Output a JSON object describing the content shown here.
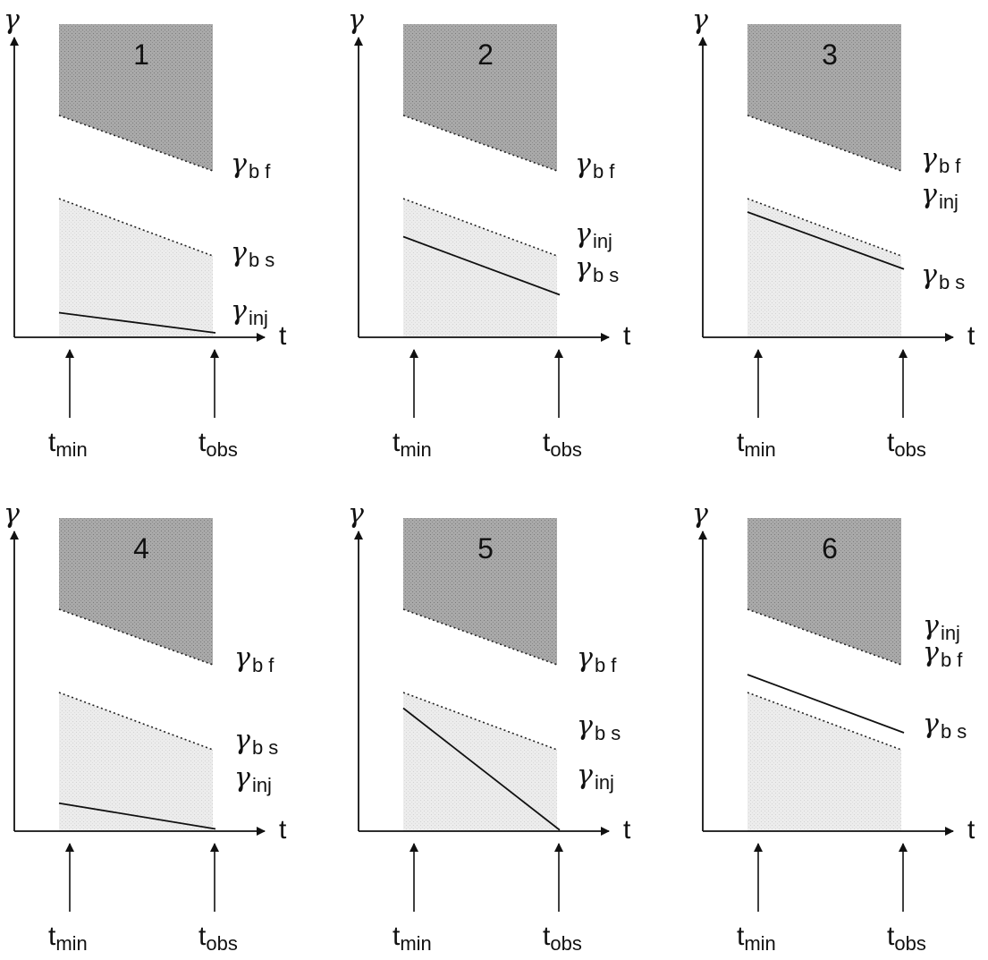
{
  "colors": {
    "fast_region": "#a9a9a9",
    "slow_region": "#e9e9e9",
    "line": "#111111",
    "background": "#ffffff"
  },
  "labels": {
    "y_axis": "γ",
    "x_axis": "t",
    "t_min_base": "t",
    "t_min_sub": "min",
    "t_obs_base": "t",
    "t_obs_sub": "obs",
    "gamma": "γ",
    "bf_sub": "b f",
    "bs_sub": "b s",
    "inj_sub": "inj"
  },
  "panels": [
    {
      "number": "1",
      "gamma_inj_start": 0.22,
      "gamma_inj_end": 0.04,
      "label_order": [
        "bf",
        "bs",
        "inj"
      ]
    },
    {
      "number": "2",
      "gamma_inj_start": 0.9,
      "gamma_inj_end": 0.38,
      "label_order": [
        "bf",
        "inj",
        "bs"
      ]
    },
    {
      "number": "3",
      "gamma_inj_start": 1.12,
      "gamma_inj_end": 0.61,
      "label_order": [
        "bf",
        "inj",
        "bs"
      ]
    },
    {
      "number": "4",
      "gamma_inj_start": 0.25,
      "gamma_inj_end": 0.02,
      "label_order": [
        "bf",
        "bs",
        "inj"
      ]
    },
    {
      "number": "5",
      "gamma_inj_start": 1.1,
      "gamma_inj_end": 0.01,
      "label_order": [
        "bf",
        "bs",
        "inj"
      ]
    },
    {
      "number": "6",
      "gamma_inj_start": 1.4,
      "gamma_inj_end": 0.88,
      "label_order": [
        "inj",
        "bf",
        "bs"
      ]
    }
  ]
}
